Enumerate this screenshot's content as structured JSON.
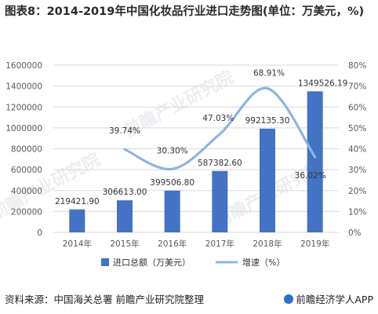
{
  "title": "图表8：2014-2019年中国化妆品行业进口走势图(单位：万美元，%)",
  "footer": {
    "source": "资料来源：中国海关总署 前瞻产业研究院整理",
    "brand": "前瞻经济学人APP"
  },
  "watermark": [
    "前瞻产业研究院",
    "前瞻产业研究院",
    "前瞻产业研究院"
  ],
  "colors": {
    "bar": "#4472c4",
    "line": "#8db4e2",
    "grid": "#d9d9d9",
    "text": "#595959"
  },
  "chart_data": {
    "type": "bar",
    "categories": [
      "2014年",
      "2015年",
      "2016年",
      "2017年",
      "2018年",
      "2019年"
    ],
    "series": [
      {
        "name": "进口总额（万美元）",
        "type": "bar",
        "axis": "left",
        "values": [
          219421.9,
          306613.0,
          399506.8,
          587382.6,
          992135.3,
          1349526.19
        ],
        "labels": [
          "219421.90",
          "306613.00",
          "399506.80",
          "587382.60",
          "992135.30",
          "1349526.19"
        ]
      },
      {
        "name": "增速（%）",
        "type": "line",
        "axis": "right",
        "values": [
          null,
          39.74,
          30.3,
          47.03,
          68.91,
          36.02
        ],
        "labels": [
          "",
          "39.74%",
          "30.30%",
          "47.03%",
          "68.91%",
          "36.02%"
        ]
      }
    ],
    "y_left": {
      "ylim": [
        0,
        1600000
      ],
      "ticks": [
        "0",
        "200000",
        "400000",
        "600000",
        "800000",
        "1000000",
        "1200000",
        "1400000",
        "1600000"
      ]
    },
    "y_right": {
      "ylim": [
        0,
        80
      ],
      "ticks": [
        "0%",
        "10%",
        "20%",
        "30%",
        "40%",
        "50%",
        "60%",
        "70%",
        "80%"
      ]
    },
    "grid": true,
    "legend": "bottom"
  }
}
